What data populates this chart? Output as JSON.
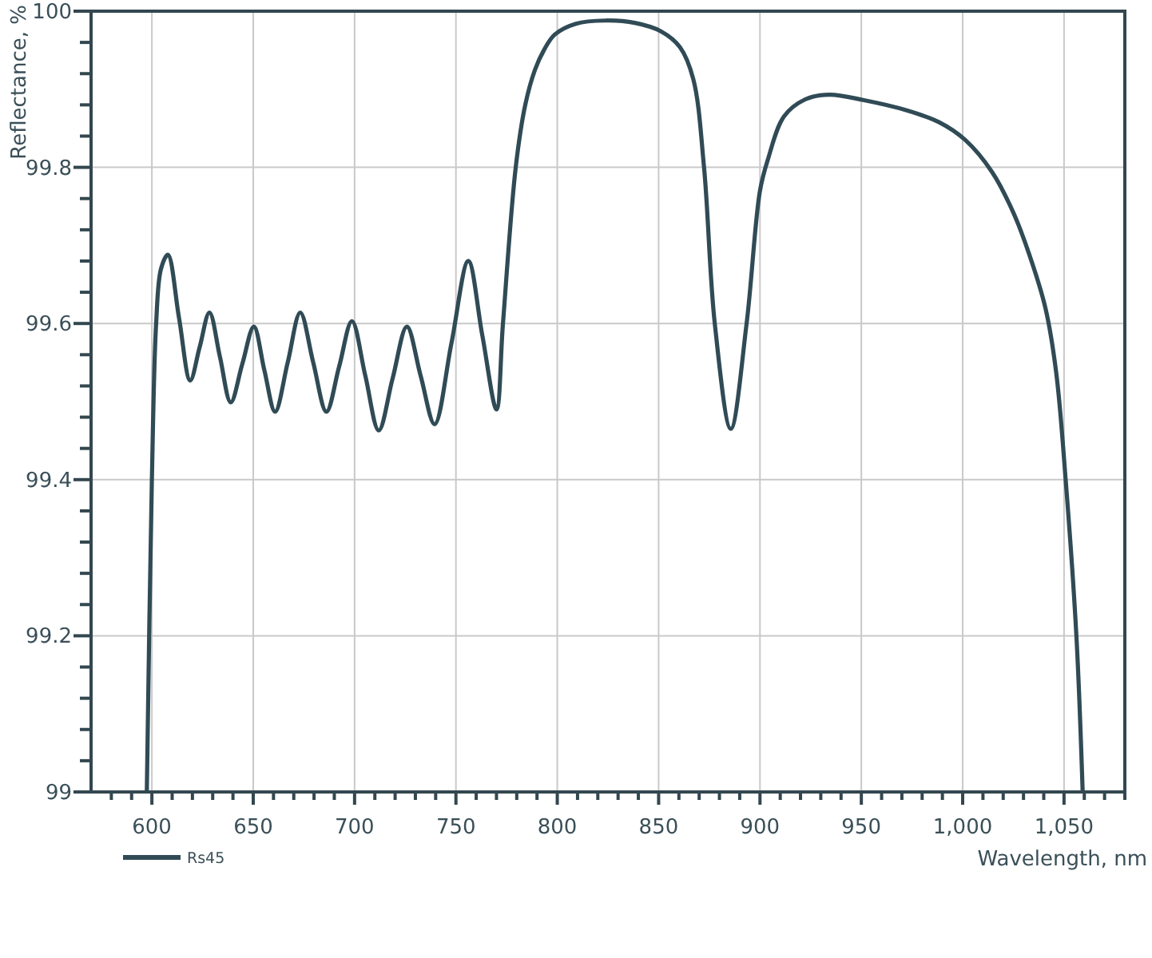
{
  "chart_data": {
    "type": "line",
    "xlabel": "Wavelength, nm",
    "ylabel": "Reflectance, %",
    "x": [
      597.5,
      600,
      602.1,
      604.5,
      607.9,
      613.4,
      618.9,
      623.6,
      628.4,
      633.6,
      638.9,
      644.6,
      650.3,
      655.5,
      660.8,
      667,
      673.2,
      679.6,
      686.1,
      692.4,
      698.7,
      705.3,
      711.9,
      718.8,
      725.8,
      732.6,
      739.5,
      747.8,
      756.1,
      763,
      770,
      773.2,
      779.5,
      784.2,
      789,
      793.4,
      798.7,
      809.2,
      823.7,
      838.2,
      851.3,
      860.5,
      867.1,
      872.4,
      877.7,
      885.6,
      893.4,
      900,
      903.9,
      911.8,
      922.3,
      934.2,
      951.3,
      972.4,
      988.2,
      1001.3,
      1014.5,
      1025,
      1032.9,
      1040.8,
      1046.1,
      1050.8,
      1056.1,
      1059.2
    ],
    "series": [
      {
        "name": "Rs45",
        "color": "#304b56",
        "values": [
          99.0,
          99.4,
          99.6,
          99.67,
          99.688,
          99.607,
          99.527,
          99.57,
          99.614,
          99.557,
          99.499,
          99.548,
          99.596,
          99.54,
          99.487,
          99.55,
          99.614,
          99.55,
          99.487,
          99.545,
          99.603,
          99.533,
          99.463,
          99.53,
          99.596,
          99.533,
          99.471,
          99.575,
          99.68,
          99.585,
          99.49,
          99.6,
          99.8,
          99.88,
          99.925,
          99.95,
          99.97,
          99.984,
          99.988,
          99.985,
          99.974,
          99.954,
          99.913,
          99.8,
          99.6,
          99.465,
          99.6,
          99.77,
          99.81,
          99.865,
          99.887,
          99.893,
          99.886,
          99.873,
          99.858,
          99.835,
          99.794,
          99.742,
          99.688,
          99.62,
          99.538,
          99.4,
          99.2,
          99.0
        ]
      }
    ],
    "xlim": [
      570,
      1080
    ],
    "ylim": [
      99,
      100
    ],
    "xticks": [
      {
        "value": 580,
        "label": null
      },
      {
        "value": 590,
        "label": null
      },
      600,
      {
        "value": 610,
        "label": null
      },
      {
        "value": 620,
        "label": null
      },
      {
        "value": 630,
        "label": null
      },
      {
        "value": 640,
        "label": null
      },
      650,
      {
        "value": 660,
        "label": null
      },
      {
        "value": 670,
        "label": null
      },
      {
        "value": 680,
        "label": null
      },
      {
        "value": 690,
        "label": null
      },
      700,
      {
        "value": 710,
        "label": null
      },
      {
        "value": 720,
        "label": null
      },
      {
        "value": 730,
        "label": null
      },
      {
        "value": 740,
        "label": null
      },
      750,
      {
        "value": 760,
        "label": null
      },
      {
        "value": 770,
        "label": null
      },
      {
        "value": 780,
        "label": null
      },
      {
        "value": 790,
        "label": null
      },
      800,
      {
        "value": 810,
        "label": null
      },
      {
        "value": 820,
        "label": null
      },
      {
        "value": 830,
        "label": null
      },
      {
        "value": 840,
        "label": null
      },
      850,
      {
        "value": 860,
        "label": null
      },
      {
        "value": 870,
        "label": null
      },
      {
        "value": 880,
        "label": null
      },
      {
        "value": 890,
        "label": null
      },
      900,
      {
        "value": 910,
        "label": null
      },
      {
        "value": 920,
        "label": null
      },
      {
        "value": 930,
        "label": null
      },
      {
        "value": 940,
        "label": null
      },
      950,
      {
        "value": 960,
        "label": null
      },
      {
        "value": 970,
        "label": null
      },
      {
        "value": 980,
        "label": null
      },
      {
        "value": 990,
        "label": null
      },
      {
        "value": 1000,
        "label": "1,000"
      },
      {
        "value": 1010,
        "label": null
      },
      {
        "value": 1020,
        "label": null
      },
      {
        "value": 1030,
        "label": null
      },
      {
        "value": 1040,
        "label": null
      },
      {
        "value": 1050,
        "label": "1,050"
      },
      {
        "value": 1060,
        "label": null
      },
      {
        "value": 1070,
        "label": null
      },
      {
        "value": 1080,
        "label": null
      }
    ],
    "yticks": [
      99,
      {
        "value": 99.04,
        "label": null
      },
      {
        "value": 99.08,
        "label": null
      },
      {
        "value": 99.12,
        "label": null
      },
      {
        "value": 99.16,
        "label": null
      },
      99.2,
      {
        "value": 99.24,
        "label": null
      },
      {
        "value": 99.28,
        "label": null
      },
      {
        "value": 99.32,
        "label": null
      },
      {
        "value": 99.36,
        "label": null
      },
      99.4,
      {
        "value": 99.44,
        "label": null
      },
      {
        "value": 99.48,
        "label": null
      },
      {
        "value": 99.52,
        "label": null
      },
      {
        "value": 99.56,
        "label": null
      },
      99.6,
      {
        "value": 99.64,
        "label": null
      },
      {
        "value": 99.68,
        "label": null
      },
      {
        "value": 99.72,
        "label": null
      },
      {
        "value": 99.76,
        "label": null
      },
      99.8,
      {
        "value": 99.84,
        "label": null
      },
      {
        "value": 99.88,
        "label": null
      },
      {
        "value": 99.92,
        "label": null
      },
      {
        "value": 99.96,
        "label": null
      },
      100
    ],
    "grid": true,
    "legend": "bottom left"
  }
}
